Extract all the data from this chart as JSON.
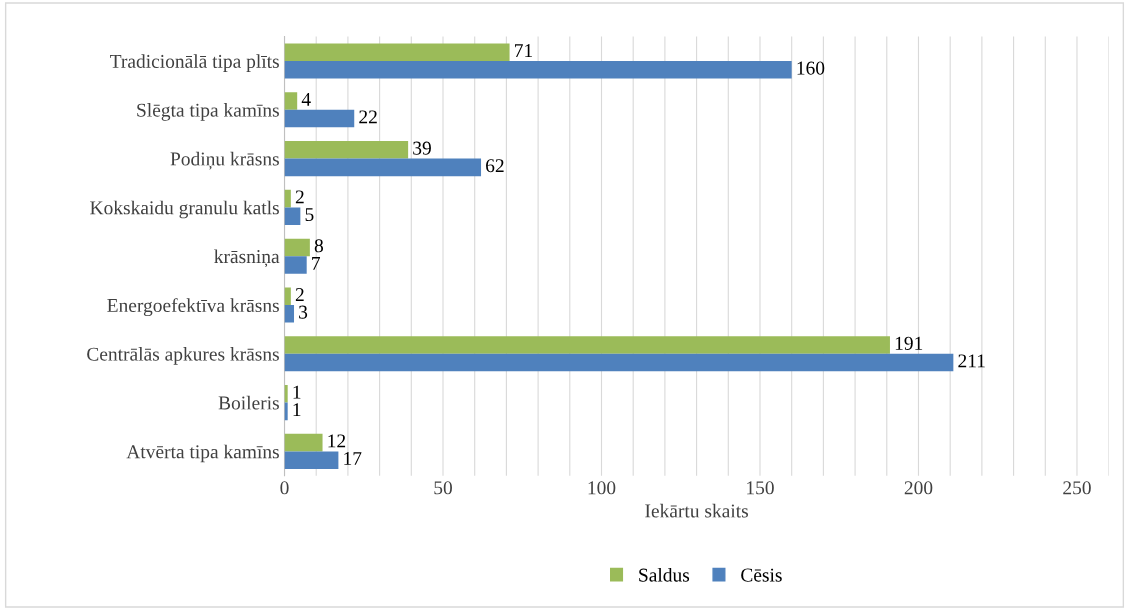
{
  "chart_data": {
    "type": "bar",
    "orientation": "horizontal",
    "xlabel": "Iekārtu skaits",
    "categories": [
      "Tradicionālā tipa plīts",
      "Slēgta tipa kamīns",
      "Podiņu krāsns",
      "Kokskaidu granulu katls",
      "krāsniņa",
      "Energoefektīva krāsns",
      "Centrālās apkures krāsns",
      "Boileris",
      "Atvērta tipa kamīns"
    ],
    "series": [
      {
        "name": "Saldus",
        "color": "#9bbb59",
        "values": [
          71,
          4,
          39,
          2,
          8,
          2,
          191,
          1,
          12
        ]
      },
      {
        "name": "Cēsis",
        "color": "#4f81bd",
        "values": [
          160,
          22,
          62,
          5,
          7,
          3,
          211,
          1,
          17
        ]
      }
    ],
    "xlim": [
      0,
      260
    ],
    "xticks": [
      0,
      {
        "value": 10,
        "label": null
      },
      {
        "value": 20,
        "label": null
      },
      {
        "value": 30,
        "label": null
      },
      {
        "value": 40,
        "label": null
      },
      50,
      {
        "value": 60,
        "label": null
      },
      {
        "value": 70,
        "label": null
      },
      {
        "value": 80,
        "label": null
      },
      {
        "value": 90,
        "label": null
      },
      100,
      {
        "value": 110,
        "label": null
      },
      {
        "value": 120,
        "label": null
      },
      {
        "value": 130,
        "label": null
      },
      {
        "value": 140,
        "label": null
      },
      150,
      {
        "value": 160,
        "label": null
      },
      {
        "value": 170,
        "label": null
      },
      {
        "value": 180,
        "label": null
      },
      {
        "value": 190,
        "label": null
      },
      200,
      {
        "value": 210,
        "label": null
      },
      {
        "value": 220,
        "label": null
      },
      {
        "value": 230,
        "label": null
      },
      {
        "value": 240,
        "label": null
      },
      250,
      {
        "value": 260,
        "label": null
      }
    ],
    "grid": "x",
    "legend": "bottom",
    "data_labels": true
  }
}
